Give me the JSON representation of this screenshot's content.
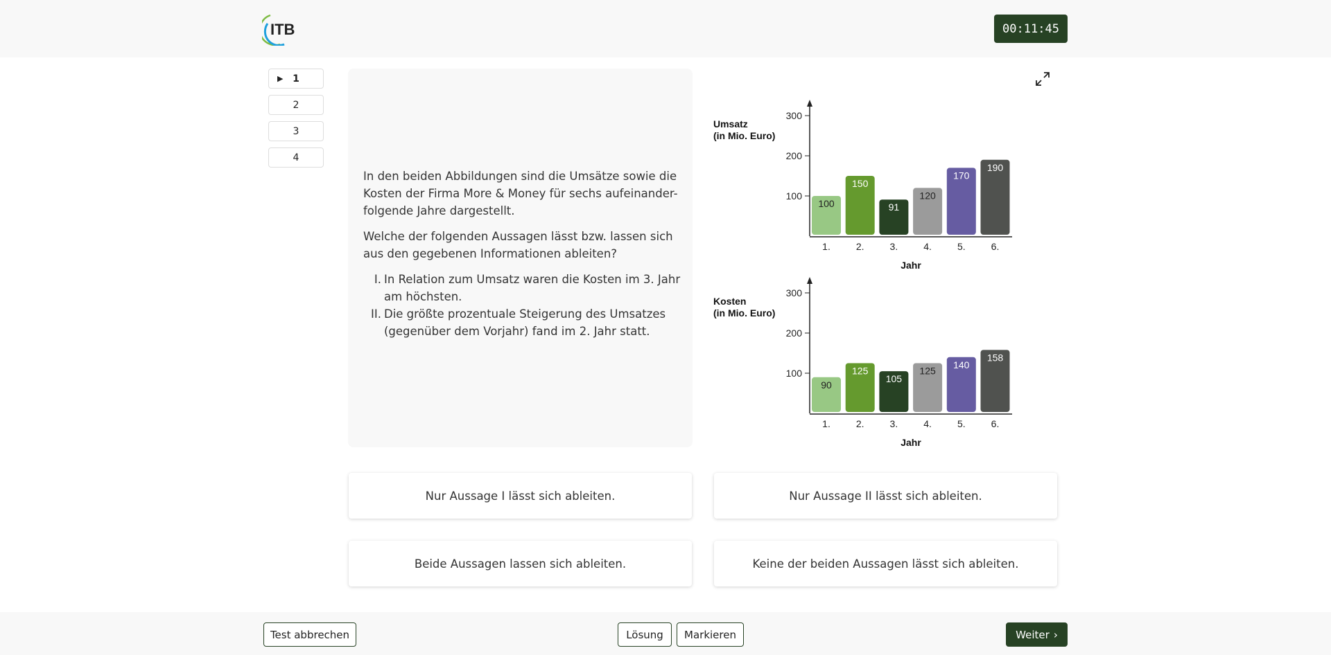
{
  "header": {
    "logo_text": "ITB",
    "timer": "00:11:45"
  },
  "nav": {
    "items": [
      {
        "label": "1",
        "active": true
      },
      {
        "label": "2"
      },
      {
        "label": "3"
      },
      {
        "label": "4"
      }
    ]
  },
  "question": {
    "intro": "In den beiden Abbildungen sind die Umsätze sowie die Kosten der Firma More & Money für sechs aufeinander-folgende Jahre dargestellt.",
    "prompt": "Welche der folgenden Aussagen lässt bzw. lassen sich aus den gegebenen Informationen ableiten?",
    "statements": [
      {
        "num": "I.",
        "text": "In Relation zum Umsatz waren die Kosten im 3. Jahr am höchsten."
      },
      {
        "num": "II.",
        "text": "Die größte prozentuale Steigerung des Umsatzes (gegenüber dem Vorjahr) fand im 2. Jahr statt."
      }
    ]
  },
  "chart_data": [
    {
      "type": "bar",
      "ylabel_line1": "Umsatz",
      "ylabel_line2": "(in Mio. Euro)",
      "xlabel": "Jahr",
      "categories": [
        "1.",
        "2.",
        "3.",
        "4.",
        "5.",
        "6."
      ],
      "values": [
        100,
        150,
        91,
        120,
        170,
        190
      ],
      "yticks": [
        100,
        200,
        300
      ],
      "ylim": [
        0,
        320
      ],
      "grid": false,
      "colors": [
        "#98c884",
        "#659a2e",
        "#274224",
        "#9b9b9b",
        "#665ca2",
        "#50524f"
      ]
    },
    {
      "type": "bar",
      "ylabel_line1": "Kosten",
      "ylabel_line2": "(in Mio. Euro)",
      "xlabel": "Jahr",
      "categories": [
        "1.",
        "2.",
        "3.",
        "4.",
        "5.",
        "6."
      ],
      "values": [
        90,
        125,
        105,
        125,
        140,
        158
      ],
      "yticks": [
        100,
        200,
        300
      ],
      "ylim": [
        0,
        320
      ],
      "grid": false,
      "colors": [
        "#98c884",
        "#659a2e",
        "#274224",
        "#9b9b9b",
        "#665ca2",
        "#50524f"
      ]
    }
  ],
  "answers": [
    "Nur Aussage I lässt sich ableiten.",
    "Nur Aussage II lässt sich ableiten.",
    "Beide Aussagen lassen sich ableiten.",
    "Keine der beiden Aussagen lässt sich ableiten."
  ],
  "footer": {
    "cancel": "Test abbrechen",
    "solution": "Lösung",
    "mark": "Markieren",
    "next": "Weiter"
  },
  "colors": {
    "accent": "#274224"
  }
}
